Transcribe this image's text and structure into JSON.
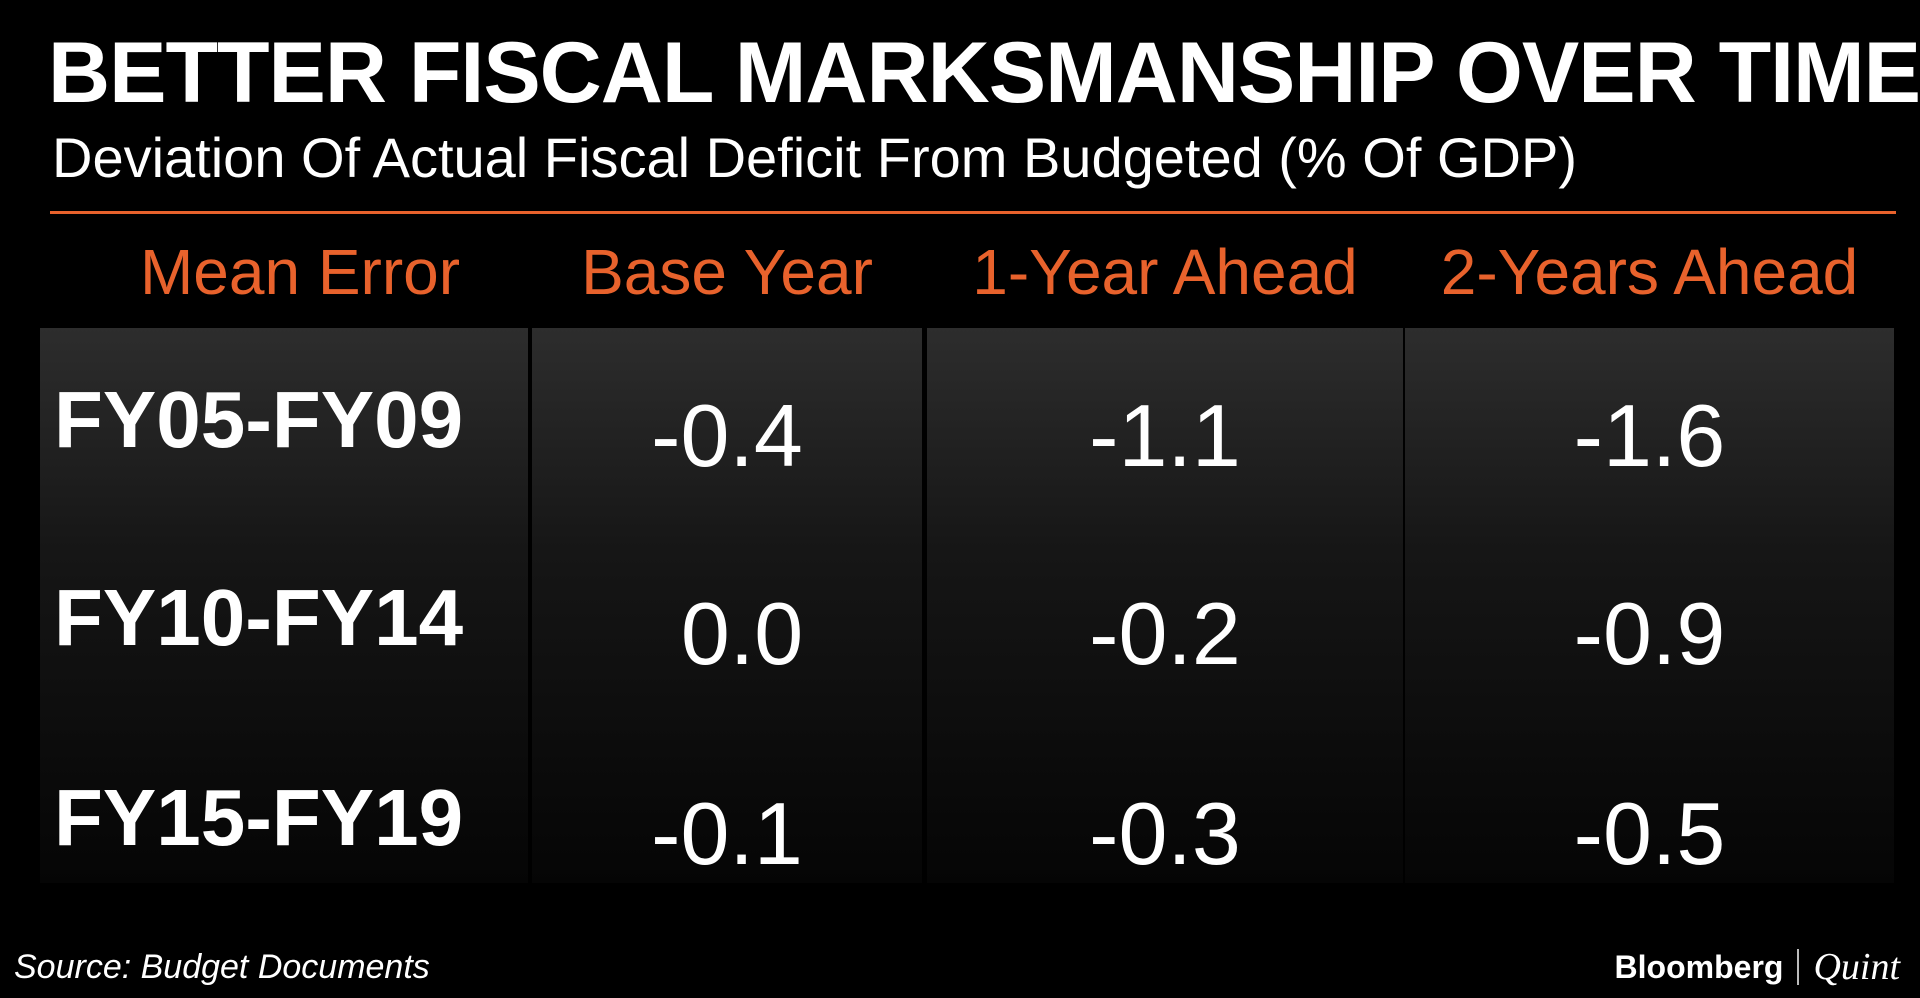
{
  "title": "BETTER FISCAL MARKSMANSHIP OVER TIME",
  "subtitle": "Deviation Of Actual Fiscal Deficit From Budgeted (% Of GDP)",
  "source": "Source: Budget Documents",
  "brand": {
    "name": "Bloomberg",
    "suffix": "Quint"
  },
  "colors": {
    "accent": "#e8622c",
    "background": "#000000",
    "text": "#ffffff"
  },
  "chart_data": {
    "type": "table",
    "title": "BETTER FISCAL MARKSMANSHIP OVER TIME",
    "subtitle": "Deviation Of Actual Fiscal Deficit From Budgeted (% Of GDP)",
    "columns": [
      "Mean Error",
      "Base Year",
      "1-Year Ahead",
      "2-Years Ahead"
    ],
    "rows": [
      {
        "label": "FY05-FY09",
        "values": [
          "-0.4",
          "-1.1",
          "-1.6"
        ]
      },
      {
        "label": "FY10-FY14",
        "values": [
          "0.0",
          "-0.2",
          "-0.9"
        ]
      },
      {
        "label": "FY15-FY19",
        "values": [
          "-0.1",
          "-0.3",
          "-0.5"
        ]
      }
    ]
  }
}
